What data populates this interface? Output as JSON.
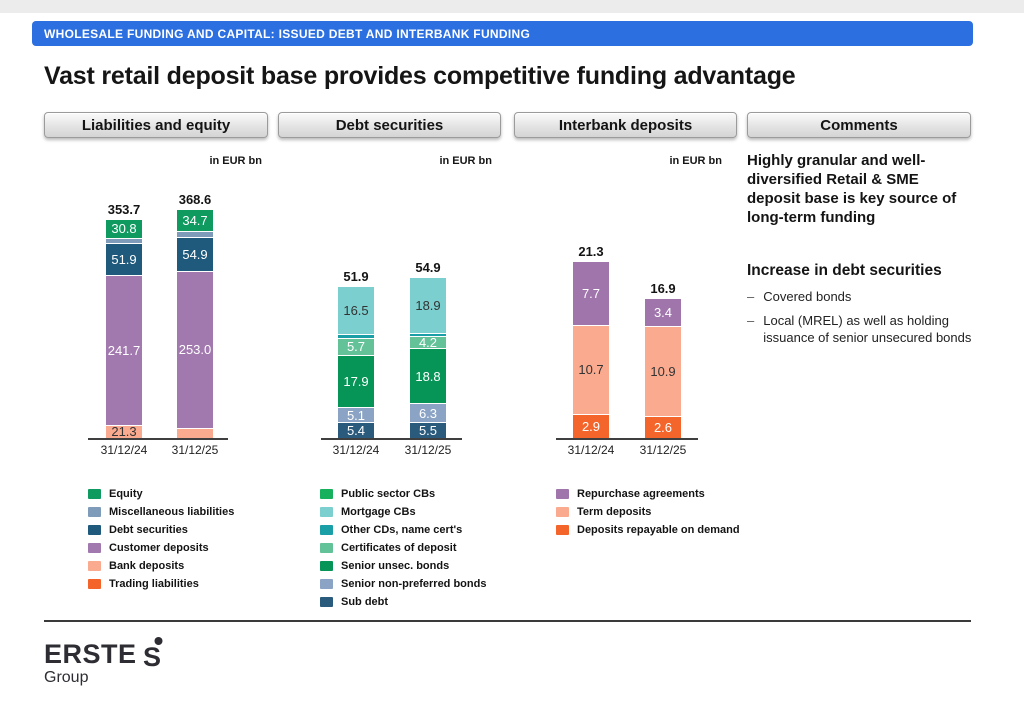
{
  "header": {
    "text": "WHOLESALE FUNDING AND CAPITAL: ISSUED DEBT AND INTERBANK FUNDING",
    "bg": "#2B6FE0",
    "text_color": "#ffffff"
  },
  "title": "Vast retail deposit base provides competitive funding advantage",
  "tabs": [
    {
      "label": "Liabilities and equity"
    },
    {
      "label": "Debt securities"
    },
    {
      "label": "Interbank deposits"
    },
    {
      "label": "Comments"
    }
  ],
  "chart_data": [
    {
      "type": "bar",
      "stacked": true,
      "title": "Liabilities and equity",
      "unit": "in EUR bn",
      "categories": [
        "31/12/24",
        "31/12/25"
      ],
      "totals": [
        353.7,
        368.6
      ],
      "total_labels": [
        "353.7",
        "368.6"
      ],
      "legend_position": "bottom",
      "series": [
        {
          "name": "Equity",
          "color": "#0F9A60",
          "label_color": "#ffffff",
          "values": [
            30.8,
            34.7
          ],
          "labels": [
            "30.8",
            "34.7"
          ]
        },
        {
          "name": "Miscellaneous liabilities",
          "color": "#7E9CBA",
          "label_color": "#ffffff",
          "values": [
            8.0,
            9.1
          ],
          "labels": [
            "",
            ""
          ],
          "estimated": true
        },
        {
          "name": "Debt securities",
          "color": "#1F5A7D",
          "label_color": "#ffffff",
          "values": [
            51.9,
            54.9
          ],
          "labels": [
            "51.9",
            "54.9"
          ]
        },
        {
          "name": "Customer deposits",
          "color": "#A279AE",
          "label_color": "#ffffff",
          "values": [
            241.7,
            253.0
          ],
          "labels": [
            "241.7",
            "253.0"
          ]
        },
        {
          "name": "Bank deposits",
          "color": "#F9AA8F",
          "label_color": "#333333",
          "values": [
            21.3,
            16.9
          ],
          "labels": [
            "21.3",
            "16.9"
          ]
        },
        {
          "name": "Trading liabilities",
          "color": "#F4632A",
          "label_color": "#ffffff",
          "values": [
            0,
            0
          ],
          "labels": [
            "",
            ""
          ],
          "estimated": true
        }
      ]
    },
    {
      "type": "bar",
      "stacked": true,
      "title": "Debt securities",
      "unit": "in EUR bn",
      "categories": [
        "31/12/24",
        "31/12/25"
      ],
      "totals": [
        51.9,
        54.9
      ],
      "total_labels": [
        "51.9",
        "54.9"
      ],
      "legend_position": "bottom",
      "series": [
        {
          "name": "Public sector CBs",
          "color": "#17B05C",
          "label_color": "#ffffff",
          "values": [
            0,
            0
          ],
          "labels": [
            "",
            ""
          ],
          "estimated": true
        },
        {
          "name": "Mortgage CBs",
          "color": "#7BCFCF",
          "label_color": "#333333",
          "values": [
            16.5,
            18.9
          ],
          "labels": [
            "16.5",
            "18.9"
          ]
        },
        {
          "name": "Other CDs, name cert's",
          "color": "#1A9FA6",
          "label_color": "#ffffff",
          "values": [
            1.3,
            1.2
          ],
          "labels": [
            "",
            ""
          ],
          "estimated": true
        },
        {
          "name": "Certificates of deposit",
          "color": "#63C298",
          "label_color": "#ffffff",
          "values": [
            5.7,
            4.2
          ],
          "labels": [
            "5.7",
            "4.2"
          ]
        },
        {
          "name": "Senior unsec. bonds",
          "color": "#079457",
          "label_color": "#ffffff",
          "values": [
            17.9,
            18.8
          ],
          "labels": [
            "17.9",
            "18.8"
          ]
        },
        {
          "name": "Senior non-preferred bonds",
          "color": "#8BA3C4",
          "label_color": "#ffffff",
          "values": [
            5.1,
            6.3
          ],
          "labels": [
            "5.1",
            "6.3"
          ]
        },
        {
          "name": "Sub debt",
          "color": "#2A5B7D",
          "label_color": "#ffffff",
          "values": [
            5.4,
            5.5
          ],
          "labels": [
            "5.4",
            "5.5"
          ]
        }
      ]
    },
    {
      "type": "bar",
      "stacked": true,
      "title": "Interbank deposits",
      "unit": "in EUR bn",
      "categories": [
        "31/12/24",
        "31/12/25"
      ],
      "totals": [
        21.3,
        16.9
      ],
      "total_labels": [
        "21.3",
        "16.9"
      ],
      "legend_position": "bottom",
      "series": [
        {
          "name": "Repurchase agreements",
          "color": "#9F75AC",
          "label_color": "#ffffff",
          "values": [
            7.7,
            3.4
          ],
          "labels": [
            "7.7",
            "3.4"
          ]
        },
        {
          "name": "Term deposits",
          "color": "#F9AA8F",
          "label_color": "#333333",
          "values": [
            10.7,
            10.9
          ],
          "labels": [
            "10.7",
            "10.9"
          ]
        },
        {
          "name": "Deposits repayable on demand",
          "color": "#F4652B",
          "label_color": "#ffffff",
          "values": [
            2.9,
            2.6
          ],
          "labels": [
            "2.9",
            "2.6"
          ]
        }
      ]
    }
  ],
  "comments": {
    "para1": "Highly granular and well-diversified Retail & SME deposit base is key source of long-term funding",
    "heading": "Increase in debt securities",
    "bullet_marker": "–",
    "bullets": [
      "Covered bonds",
      "Local (MREL) as well as holding issuance of senior unsecured bonds"
    ]
  },
  "brand": {
    "name": "ERSTE",
    "sub": "Group"
  }
}
